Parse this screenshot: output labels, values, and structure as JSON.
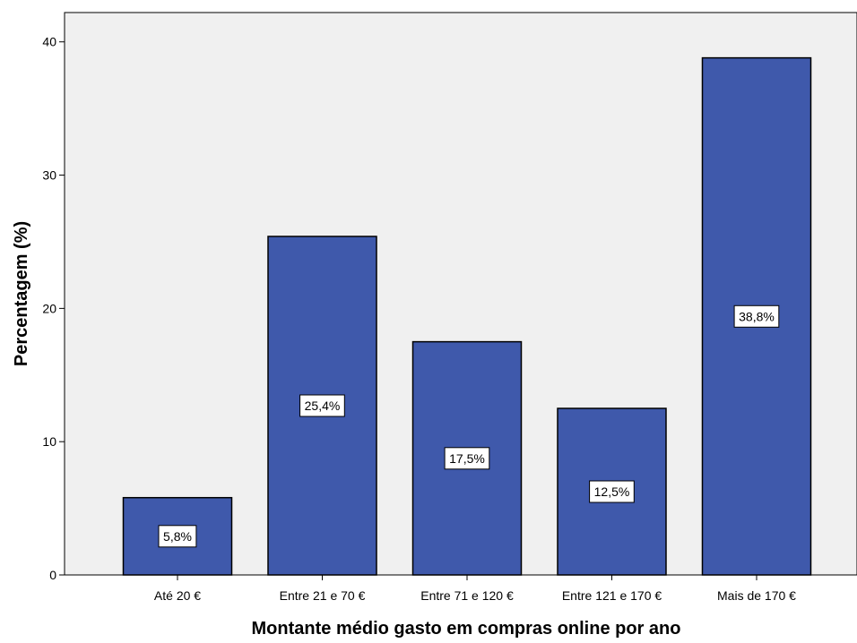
{
  "chart_data": {
    "type": "bar",
    "categories": [
      "Até 20 €",
      "Entre 21 e 70 €",
      "Entre 71 e 120 €",
      "Entre 121 e 170 €",
      "Mais de 170 €"
    ],
    "values": [
      5.8,
      25.4,
      17.5,
      12.5,
      38.8
    ],
    "value_labels": [
      "5,8%",
      "25,4%",
      "17,5%",
      "12,5%",
      "38,8%"
    ],
    "title": "",
    "xlabel": "Montante médio gasto em compras online por ano",
    "ylabel": "Percentagem (%)",
    "ylim": [
      0,
      42.2
    ],
    "yticks": [
      0,
      10,
      20,
      30,
      40
    ],
    "grid": false,
    "legend": "none",
    "colors": {
      "bar_fill": "#3f59ab",
      "bar_stroke": "#000000",
      "plot_background": "#f0f0f0",
      "axis": "#000000"
    }
  }
}
